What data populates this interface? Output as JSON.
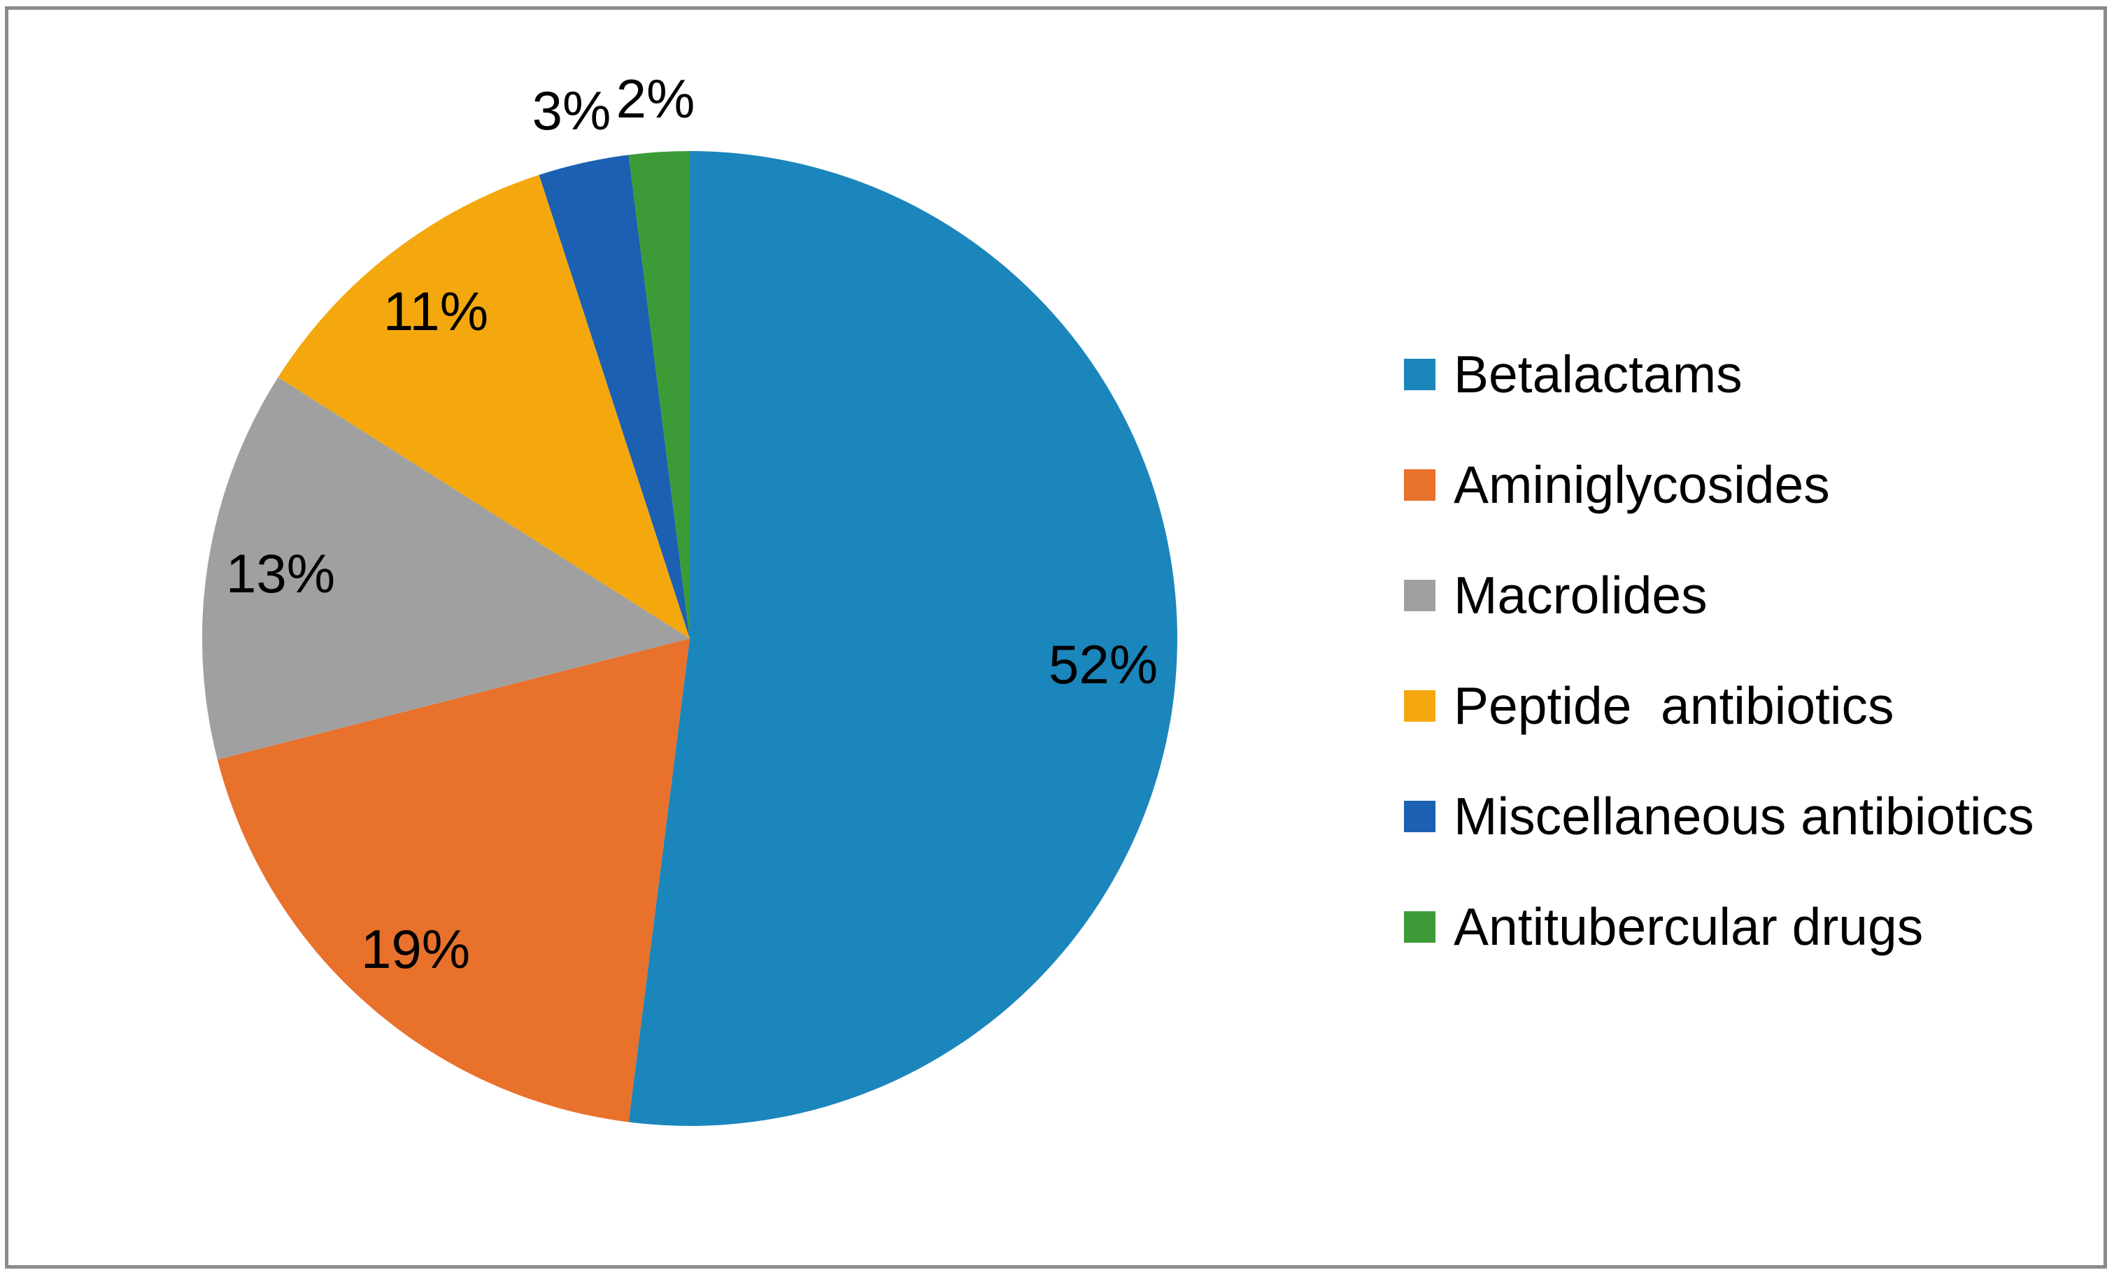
{
  "frame": {
    "border_color": "#8B8B8B",
    "background": "#FFFFFF"
  },
  "chart_data": {
    "type": "pie",
    "title": "",
    "categories": [
      "Betalactams",
      "Aminiglycosides",
      "Macrolides",
      "Peptide  antibiotics",
      "Miscellaneous antibiotics",
      "Antitubercular drugs"
    ],
    "values": [
      52,
      19,
      13,
      11,
      3,
      2
    ],
    "value_unit": "%",
    "data_labels": [
      "52%",
      "19%",
      "13%",
      "11%",
      "3%",
      "2%"
    ],
    "colors": [
      "#1B86BB",
      "#E8712C",
      "#A0A0A0",
      "#F4A80E",
      "#1C60B2",
      "#3C9B36"
    ],
    "label_color": "#000000",
    "start_angle_deg": 0,
    "direction": "clockwise",
    "legend_position": "right",
    "label_placement_rule": "inside at 0.85r for slices >= 10%, outside at 1.11r for smaller slices"
  }
}
